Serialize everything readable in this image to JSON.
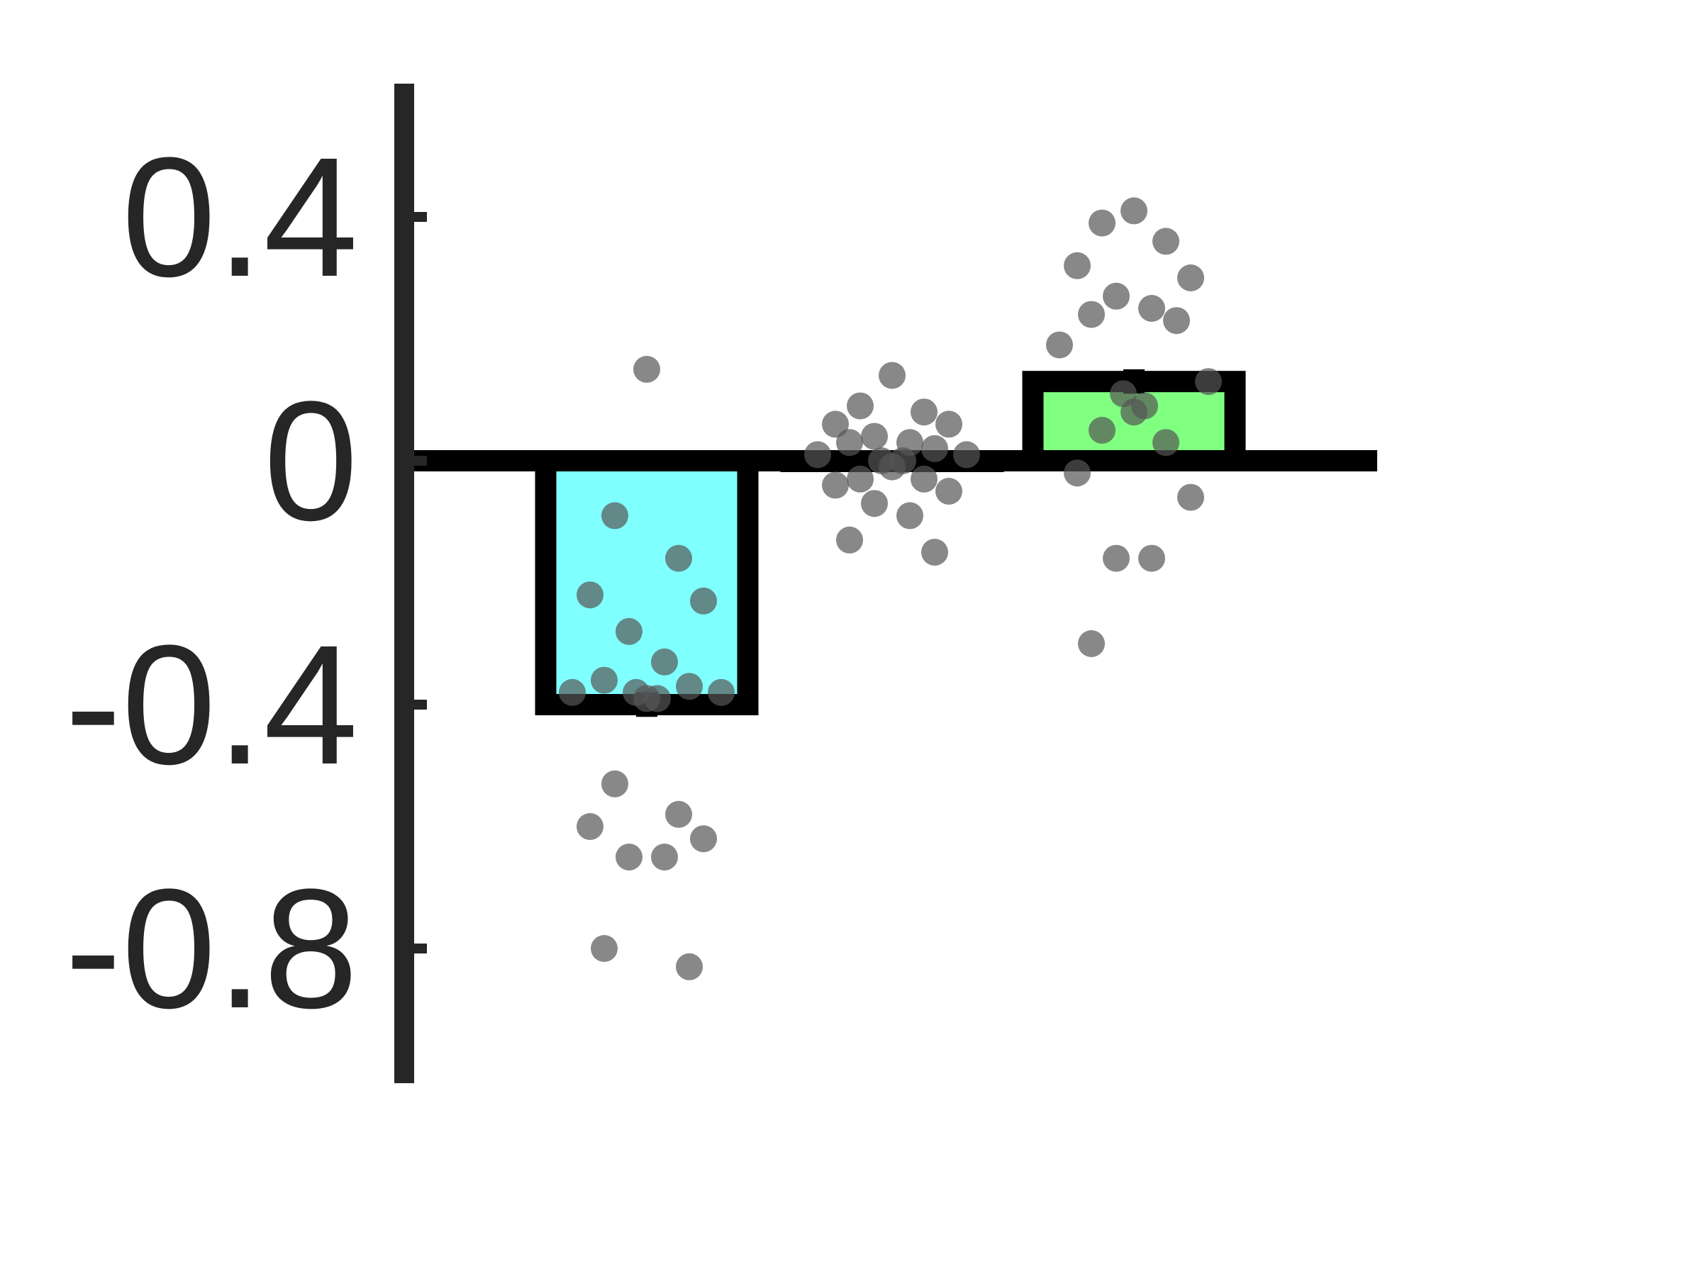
{
  "chart_data": {
    "type": "bar",
    "title": "",
    "xlabel": "",
    "ylabel": "",
    "ylim": [
      -1.0,
      0.6
    ],
    "yticks": [
      {
        "value": 0.4,
        "label": "0.4"
      },
      {
        "value": 0,
        "label": "0"
      },
      {
        "value": -0.4,
        "label": "-0.4"
      },
      {
        "value": -0.8,
        "label": "-0.8"
      }
    ],
    "grid": false,
    "legend": "none",
    "series": [
      {
        "values": [
          -0.4,
          0,
          0.13
        ],
        "colors": [
          "#80ffff",
          "#ffffff",
          "#80ff80"
        ],
        "error": [
          0.02,
          0.01,
          0.02
        ]
      }
    ],
    "points": [
      {
        "bar": 1,
        "y": [
          0.15,
          -0.09,
          -0.16,
          -0.22,
          -0.23,
          -0.28,
          -0.33,
          -0.36,
          -0.37,
          -0.38,
          -0.38,
          -0.38,
          -0.39,
          -0.39,
          -0.53,
          -0.58,
          -0.6,
          -0.62,
          -0.65,
          -0.65,
          -0.8,
          -0.83
        ]
      },
      {
        "bar": 2,
        "y": [
          0.14,
          0.09,
          0.08,
          0.06,
          0.06,
          0.04,
          0.03,
          0.03,
          0.02,
          0.01,
          0.01,
          0.0,
          0.0,
          -0.01,
          -0.03,
          -0.03,
          -0.04,
          -0.05,
          -0.07,
          -0.09,
          -0.13,
          -0.15
        ]
      },
      {
        "bar": 3,
        "y": [
          0.41,
          0.39,
          0.36,
          0.32,
          0.3,
          0.27,
          0.25,
          0.24,
          0.23,
          0.19,
          0.13,
          0.11,
          0.09,
          0.08,
          0.05,
          0.03,
          -0.02,
          -0.06,
          -0.16,
          -0.16,
          -0.3
        ]
      }
    ],
    "point_color": "#555555",
    "point_opacity": 0.7
  }
}
